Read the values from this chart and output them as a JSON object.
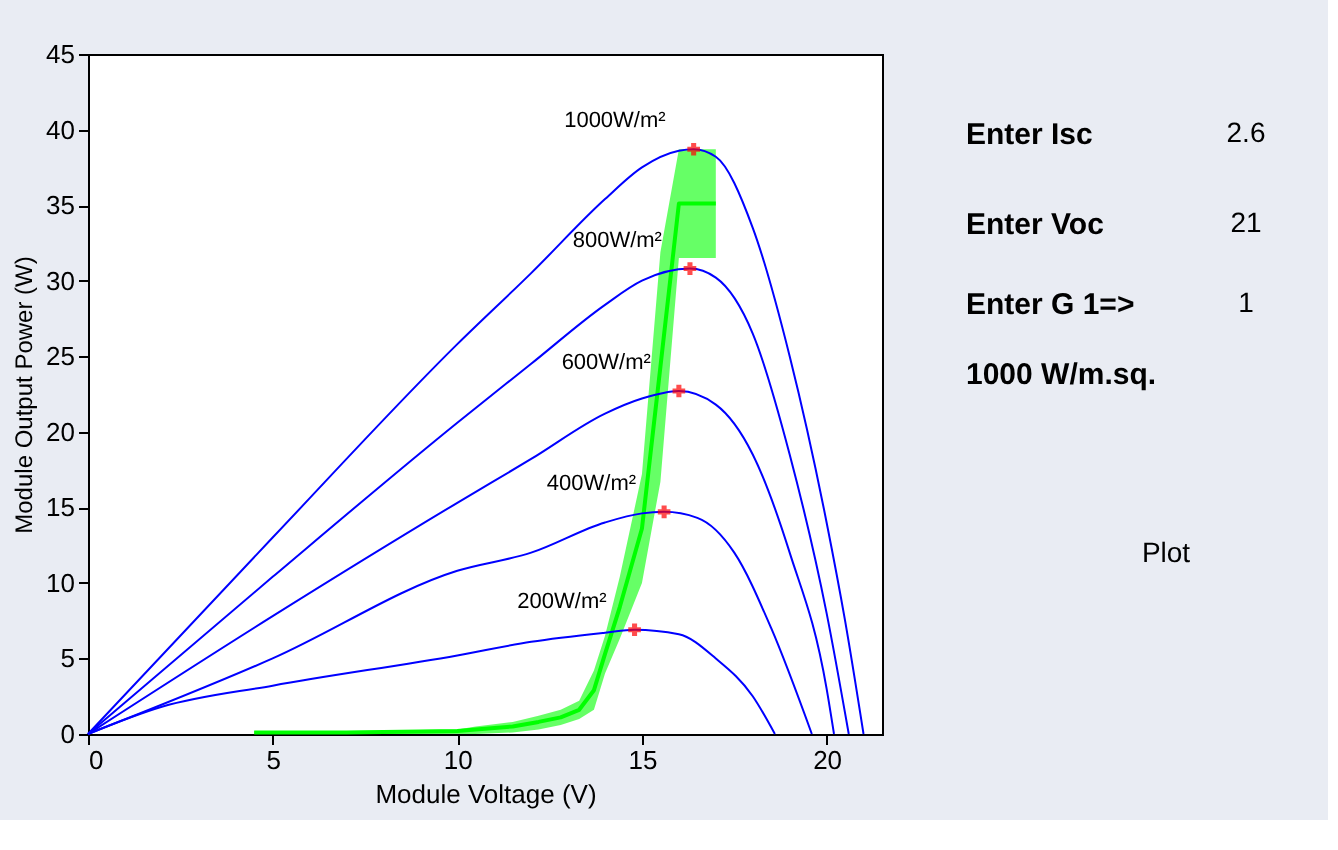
{
  "chart_data": {
    "type": "line",
    "xlabel": "Module Voltage (V)",
    "ylabel": "Module Output Power (W)",
    "xlim": [
      0,
      21.5
    ],
    "xticks": [
      0,
      5,
      10,
      15,
      20
    ],
    "ylim": [
      0,
      45
    ],
    "yticks": [
      0,
      5,
      10,
      15,
      20,
      25,
      30,
      35,
      40,
      45
    ],
    "grid": false,
    "series": [
      {
        "color": "#0000ff",
        "x": [
          0,
          5,
          10,
          12,
          14,
          15,
          16,
          16.4,
          17,
          18,
          19,
          20,
          20.5,
          21
        ],
        "values": [
          0,
          13,
          25.8,
          30.5,
          35.4,
          37.5,
          38.6,
          38.7,
          38.2,
          33.5,
          25,
          14,
          7.5,
          0
        ]
      },
      {
        "color": "#0000ff",
        "x": [
          0,
          5,
          10,
          12,
          14,
          15,
          16.3,
          17,
          18,
          19,
          20,
          20.6
        ],
        "values": [
          0,
          10.4,
          20.6,
          24.5,
          28.4,
          30,
          30.8,
          30.2,
          26.5,
          18.5,
          8,
          0
        ]
      },
      {
        "color": "#0000ff",
        "x": [
          0,
          5,
          10,
          12,
          14,
          15,
          16,
          17,
          18,
          19,
          20,
          20.2
        ],
        "values": [
          0,
          7.8,
          15.3,
          18.2,
          21.2,
          22.2,
          22.7,
          21.8,
          18.5,
          12,
          3,
          0
        ]
      },
      {
        "color": "#0000ff",
        "x": [
          0,
          5,
          10,
          12,
          14,
          15,
          15.6,
          16.5,
          17.5,
          18.5,
          19.6
        ],
        "values": [
          0,
          5,
          10.8,
          12,
          14,
          14.6,
          14.7,
          14.3,
          12,
          7,
          0
        ]
      },
      {
        "color": "#0000ff",
        "x": [
          0,
          2,
          5,
          10,
          12,
          14,
          14.8,
          16,
          17,
          18,
          18.6
        ],
        "values": [
          0,
          1.8,
          3.2,
          5.2,
          6.1,
          6.7,
          6.9,
          6.6,
          5,
          2.5,
          0
        ]
      },
      {
        "color": "#00ff00",
        "x": [
          4.5,
          7,
          10,
          10.5,
          11.5,
          12.2,
          12.8,
          13.3,
          13.7,
          14.0,
          14.4,
          15.0,
          15.5,
          16.0,
          17.0
        ],
        "values": [
          0.1,
          0.1,
          0.2,
          0.3,
          0.5,
          0.8,
          1.1,
          1.6,
          2.9,
          5.3,
          8.4,
          13.6,
          24.3,
          35.1,
          35.1
        ],
        "lower": [
          0,
          0,
          0,
          0,
          0.1,
          0.3,
          0.6,
          1.0,
          1.6,
          4.0,
          6.3,
          10.0,
          16.7,
          31.5,
          31.5
        ],
        "upper": [
          0.2,
          0.2,
          0.3,
          0.5,
          0.8,
          1.2,
          1.6,
          2.2,
          4.2,
          6.5,
          10.4,
          17.2,
          31.9,
          38.7,
          38.7
        ]
      },
      {
        "type": "scatter",
        "marker": "cross",
        "color": "#ff0000",
        "x": [
          16.4,
          16.3,
          16.0,
          15.6,
          14.8
        ],
        "values": [
          38.7,
          30.8,
          22.7,
          14.7,
          6.9
        ]
      }
    ],
    "annotations": [
      {
        "text": "1000W/m²",
        "x": 16.4,
        "y": 38.7
      },
      {
        "text": "800W/m²",
        "x": 16.3,
        "y": 30.8
      },
      {
        "text": "600W/m²",
        "x": 16.0,
        "y": 22.7
      },
      {
        "text": "400W/m²",
        "x": 15.6,
        "y": 14.7
      },
      {
        "text": "200W/m²",
        "x": 14.8,
        "y": 6.9
      },
      "Enter Isc",
      "2.6",
      "Enter Voc",
      "21",
      "Enter G 1=>",
      "1",
      "1000 W/m.sq.",
      "Plot"
    ]
  }
}
